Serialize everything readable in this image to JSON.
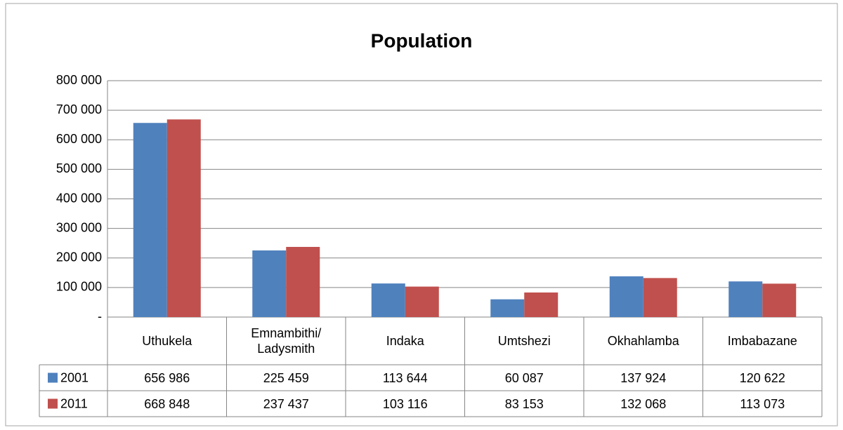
{
  "chart_data": {
    "type": "bar",
    "title": "Population",
    "categories": [
      "Uthukela",
      "Emnambithi/ Ladysmith",
      "Indaka",
      "Umtshezi",
      "Okhahlamba",
      "Imbabazane"
    ],
    "series": [
      {
        "name": "2001",
        "color": "#4f81bd",
        "values": [
          656986,
          225459,
          113644,
          60087,
          137924,
          120622
        ],
        "value_labels": [
          "656 986",
          "225 459",
          "113 644",
          "60 087",
          "137 924",
          "120 622"
        ]
      },
      {
        "name": "2011",
        "color": "#c0504d",
        "values": [
          668848,
          237437,
          103116,
          83153,
          132068,
          113073
        ],
        "value_labels": [
          "668 848",
          "237 437",
          "103 116",
          "83 153",
          "132 068",
          "113 073"
        ]
      }
    ],
    "ylim": [
      0,
      800000
    ],
    "yticks": [
      {
        "value": 0,
        "label": "-"
      },
      {
        "value": 100000,
        "label": "100 000"
      },
      {
        "value": 200000,
        "label": "200 000"
      },
      {
        "value": 300000,
        "label": "300 000"
      },
      {
        "value": 400000,
        "label": "400 000"
      },
      {
        "value": 500000,
        "label": "500 000"
      },
      {
        "value": 600000,
        "label": "600 000"
      },
      {
        "value": 700000,
        "label": "700 000"
      },
      {
        "value": 800000,
        "label": "800 000"
      }
    ],
    "grid": true
  }
}
